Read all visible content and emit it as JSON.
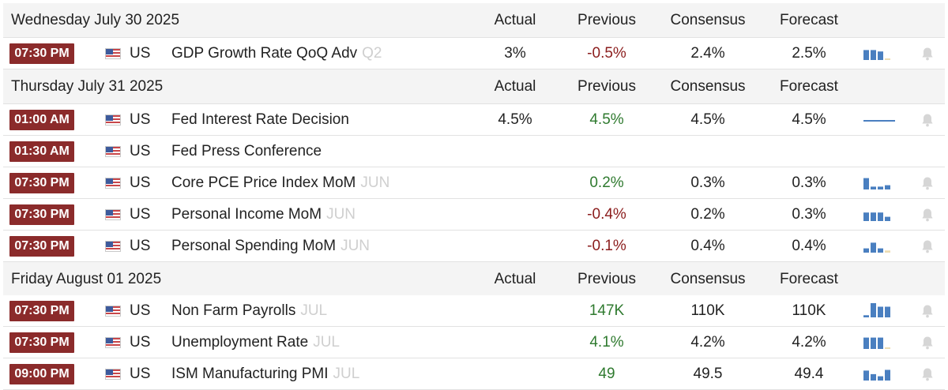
{
  "columns": {
    "actual": "Actual",
    "previous": "Previous",
    "consensus": "Consensus",
    "forecast": "Forecast"
  },
  "colors": {
    "time_badge": "#8b2b2b",
    "positive": "#2f7a2f",
    "negative": "#8b1d1d",
    "spark_bar": "#4a7fc0",
    "spark_forecast": "#ecdcb2"
  },
  "days": [
    {
      "date": "Wednesday July 30 2025",
      "events": [
        {
          "time": "07:30 PM",
          "country": "US",
          "name": "GDP Growth Rate QoQ Adv",
          "period": "Q2",
          "actual": "3%",
          "previous": "-0.5%",
          "previous_trend": "neg",
          "consensus": "2.4%",
          "forecast": "2.5%",
          "spark": [
            0.7,
            0.7,
            0.6,
            0.1
          ]
        }
      ]
    },
    {
      "date": "Thursday July 31 2025",
      "events": [
        {
          "time": "01:00 AM",
          "country": "US",
          "name": "Fed Interest Rate Decision",
          "period": "",
          "actual": "4.5%",
          "previous": "4.5%",
          "previous_trend": "pos",
          "consensus": "4.5%",
          "forecast": "4.5%",
          "spark_line": true
        },
        {
          "time": "01:30 AM",
          "country": "US",
          "name": "Fed Press Conference",
          "period": "",
          "actual": "",
          "previous": "",
          "previous_trend": "",
          "consensus": "",
          "forecast": ""
        },
        {
          "time": "07:30 PM",
          "country": "US",
          "name": "Core PCE Price Index MoM",
          "period": "JUN",
          "actual": "",
          "previous": "0.2%",
          "previous_trend": "pos",
          "consensus": "0.3%",
          "forecast": "0.3%",
          "spark": [
            0.8,
            0.2,
            0.2,
            0.3
          ]
        },
        {
          "time": "07:30 PM",
          "country": "US",
          "name": "Personal Income MoM",
          "period": "JUN",
          "actual": "",
          "previous": "-0.4%",
          "previous_trend": "neg",
          "consensus": "0.2%",
          "forecast": "0.3%",
          "spark": [
            0.6,
            0.6,
            0.6,
            0.3
          ]
        },
        {
          "time": "07:30 PM",
          "country": "US",
          "name": "Personal Spending MoM",
          "period": "JUN",
          "actual": "",
          "previous": "-0.1%",
          "previous_trend": "neg",
          "consensus": "0.4%",
          "forecast": "0.4%",
          "spark": [
            0.3,
            0.7,
            0.3,
            0.15
          ]
        }
      ]
    },
    {
      "date": "Friday August 01 2025",
      "events": [
        {
          "time": "07:30 PM",
          "country": "US",
          "name": "Non Farm Payrolls",
          "period": "JUL",
          "actual": "",
          "previous": "147K",
          "previous_trend": "pos",
          "consensus": "110K",
          "forecast": "110K",
          "spark": [
            0.15,
            1.0,
            0.75,
            0.75
          ]
        },
        {
          "time": "07:30 PM",
          "country": "US",
          "name": "Unemployment Rate",
          "period": "JUL",
          "actual": "",
          "previous": "4.1%",
          "previous_trend": "pos",
          "consensus": "4.2%",
          "forecast": "4.2%",
          "spark": [
            0.8,
            0.8,
            0.8,
            0.1
          ]
        },
        {
          "time": "09:00 PM",
          "country": "US",
          "name": "ISM Manufacturing PMI",
          "period": "JUL",
          "actual": "",
          "previous": "49",
          "previous_trend": "pos",
          "consensus": "49.5",
          "forecast": "49.4",
          "spark": [
            0.7,
            0.45,
            0.3,
            0.75
          ]
        }
      ]
    }
  ]
}
